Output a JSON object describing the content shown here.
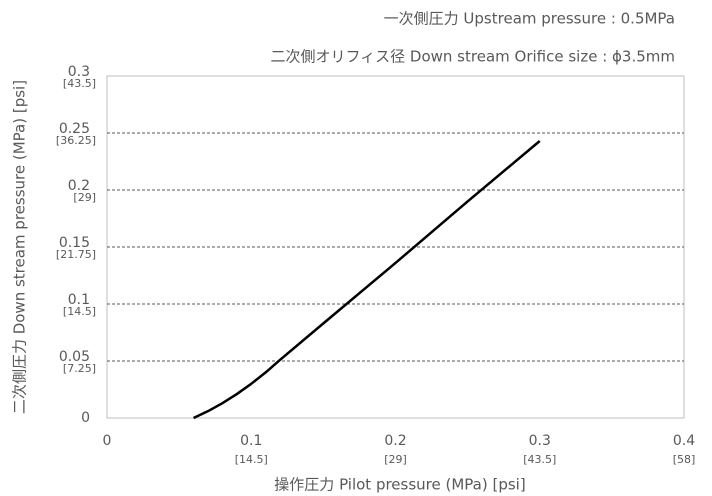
{
  "chart_data": {
    "type": "line",
    "title": "一次側圧力 Upstream pressure : 0.5MPa",
    "subtitle": "二次側オリフィス径 Down stream Orifice size : ϕ3.5mm",
    "xlabel": "操作圧力 Pilot pressure (MPa) [psi]",
    "ylabel": "二次側圧力 Down stream pressure (MPa) [psi]",
    "x": [
      0.06,
      0.07,
      0.08,
      0.09,
      0.1,
      0.11,
      0.12,
      0.15,
      0.2,
      0.25,
      0.3
    ],
    "series": [
      {
        "name": null,
        "color": "#000000",
        "values": [
          0,
          0.006,
          0.013,
          0.021,
          0.03,
          0.04,
          0.051,
          0.083,
          0.136,
          0.19,
          0.243
        ]
      }
    ],
    "xlim": [
      0,
      0.4
    ],
    "xticks": [
      0,
      0.1,
      0.2,
      0.3,
      0.4
    ],
    "xtick_sublabels": [
      null,
      "[14.5]",
      "[29]",
      "[43.5]",
      "[58]"
    ],
    "ylim": [
      0,
      0.3
    ],
    "yticks": [
      0,
      0.05,
      0.1,
      0.15,
      0.2,
      0.25,
      0.3
    ],
    "ytick_sublabels": [
      null,
      "[7.25]",
      "[14.5]",
      "[21.75]",
      "[29]",
      "[36.25]",
      "[43.5]"
    ],
    "grid": true
  }
}
